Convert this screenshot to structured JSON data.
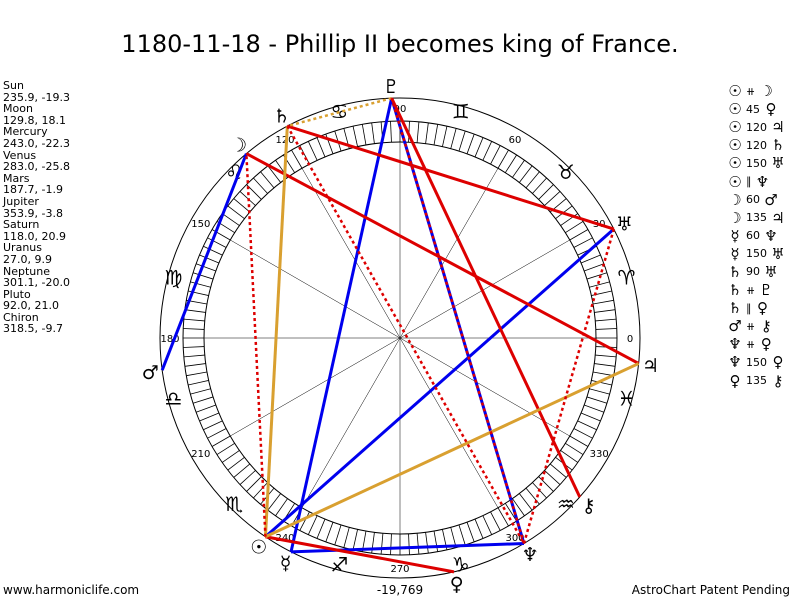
{
  "title": "1180-11-18 - Phillip II becomes king of France.",
  "planets": [
    {
      "name": "Sun",
      "coords": "235.9, -19.3"
    },
    {
      "name": "Moon",
      "coords": "129.8, 18.1"
    },
    {
      "name": "Mercury",
      "coords": "243.0, -22.3"
    },
    {
      "name": "Venus",
      "coords": "283.0, -25.8"
    },
    {
      "name": "Mars",
      "coords": "187.7, -1.9"
    },
    {
      "name": "Jupiter",
      "coords": "353.9, -3.8"
    },
    {
      "name": "Saturn",
      "coords": "118.0, 20.9"
    },
    {
      "name": "Uranus",
      "coords": "27.0, 9.9"
    },
    {
      "name": "Neptune",
      "coords": "301.1, -20.0"
    },
    {
      "name": "Pluto",
      "coords": "92.0, 21.0"
    },
    {
      "name": "Chiron",
      "coords": "318.5, -9.7"
    }
  ],
  "aspects": [
    {
      "p1": "☉",
      "angle": "⧺",
      "p2": "☽"
    },
    {
      "p1": "☉",
      "angle": "45",
      "p2": "♀"
    },
    {
      "p1": "☉",
      "angle": "120",
      "p2": "♃"
    },
    {
      "p1": "☉",
      "angle": "120",
      "p2": "♄"
    },
    {
      "p1": "☉",
      "angle": "150",
      "p2": "♅"
    },
    {
      "p1": "☉",
      "angle": "∥",
      "p2": "♆"
    },
    {
      "p1": "☽",
      "angle": "60",
      "p2": "♂"
    },
    {
      "p1": "☽",
      "angle": "135",
      "p2": "♃"
    },
    {
      "p1": "☿",
      "angle": "60",
      "p2": "♆"
    },
    {
      "p1": "☿",
      "angle": "150",
      "p2": "♅"
    },
    {
      "p1": "♄",
      "angle": "90",
      "p2": "♅"
    },
    {
      "p1": "♄",
      "angle": "⧺",
      "p2": "♇"
    },
    {
      "p1": "♄",
      "angle": "∥",
      "p2": "♀"
    },
    {
      "p1": "♂",
      "angle": "⧺",
      "p2": "⚷"
    },
    {
      "p1": "♆",
      "angle": "⧺",
      "p2": "♀"
    },
    {
      "p1": "♆",
      "angle": "150",
      "p2": "♀"
    },
    {
      "p1": "♀",
      "angle": "135",
      "p2": "⚷"
    }
  ],
  "wheel": {
    "degree_labels": [
      "0",
      "30",
      "60",
      "90",
      "120",
      "150",
      "180",
      "210",
      "240",
      "270",
      "300",
      "330"
    ],
    "signs": [
      "♈",
      "♉",
      "♊",
      "♋",
      "♌",
      "♍",
      "♎",
      "♏",
      "♐",
      "♑",
      "♒",
      "♓"
    ],
    "planet_glyphs": [
      {
        "glyph": "☉",
        "longitude": 235.9
      },
      {
        "glyph": "☽",
        "longitude": 129.8
      },
      {
        "glyph": "☿",
        "longitude": 243.0
      },
      {
        "glyph": "♀",
        "longitude": 283.0
      },
      {
        "glyph": "♂",
        "longitude": 187.7
      },
      {
        "glyph": "♃",
        "longitude": 353.9
      },
      {
        "glyph": "♄",
        "longitude": 118.0
      },
      {
        "glyph": "♅",
        "longitude": 27.0
      },
      {
        "glyph": "♆",
        "longitude": 301.1
      },
      {
        "glyph": "♇",
        "longitude": 92.0
      },
      {
        "glyph": "⚷",
        "longitude": 318.5
      }
    ],
    "lines": [
      {
        "from": 92.0,
        "to": 243.0,
        "color": "#0000ee",
        "style": "solid"
      },
      {
        "from": 92.0,
        "to": 301.1,
        "color": "#0000ee",
        "style": "solid"
      },
      {
        "from": 243.0,
        "to": 301.1,
        "color": "#0000ee",
        "style": "solid"
      },
      {
        "from": 235.9,
        "to": 27.0,
        "color": "#0000ee",
        "style": "solid"
      },
      {
        "from": 129.8,
        "to": 187.7,
        "color": "#0000ee",
        "style": "solid"
      },
      {
        "from": 92.0,
        "to": 318.5,
        "color": "#dd0000",
        "style": "solid"
      },
      {
        "from": 118.0,
        "to": 27.0,
        "color": "#dd0000",
        "style": "solid"
      },
      {
        "from": 129.8,
        "to": 353.9,
        "color": "#dd0000",
        "style": "solid"
      },
      {
        "from": 283.0,
        "to": 235.9,
        "color": "#dd0000",
        "style": "solid"
      },
      {
        "from": 235.9,
        "to": 118.0,
        "color": "#d9a030",
        "style": "solid"
      },
      {
        "from": 235.9,
        "to": 353.9,
        "color": "#d9a030",
        "style": "solid"
      },
      {
        "from": 92.0,
        "to": 118.0,
        "color": "#d9a030",
        "style": "dotted"
      },
      {
        "from": 235.9,
        "to": 129.8,
        "color": "#dd0000",
        "style": "dotted"
      },
      {
        "from": 118.0,
        "to": 301.1,
        "color": "#dd0000",
        "style": "dotted"
      },
      {
        "from": 27.0,
        "to": 301.1,
        "color": "#dd0000",
        "style": "dotted"
      },
      {
        "from": 301.1,
        "to": 92.0,
        "color": "#dd0000",
        "style": "dotted"
      }
    ]
  },
  "footer": {
    "left": "www.harmoniclife.com",
    "center": "-19,769",
    "right": "AstroChart Patent Pending"
  }
}
